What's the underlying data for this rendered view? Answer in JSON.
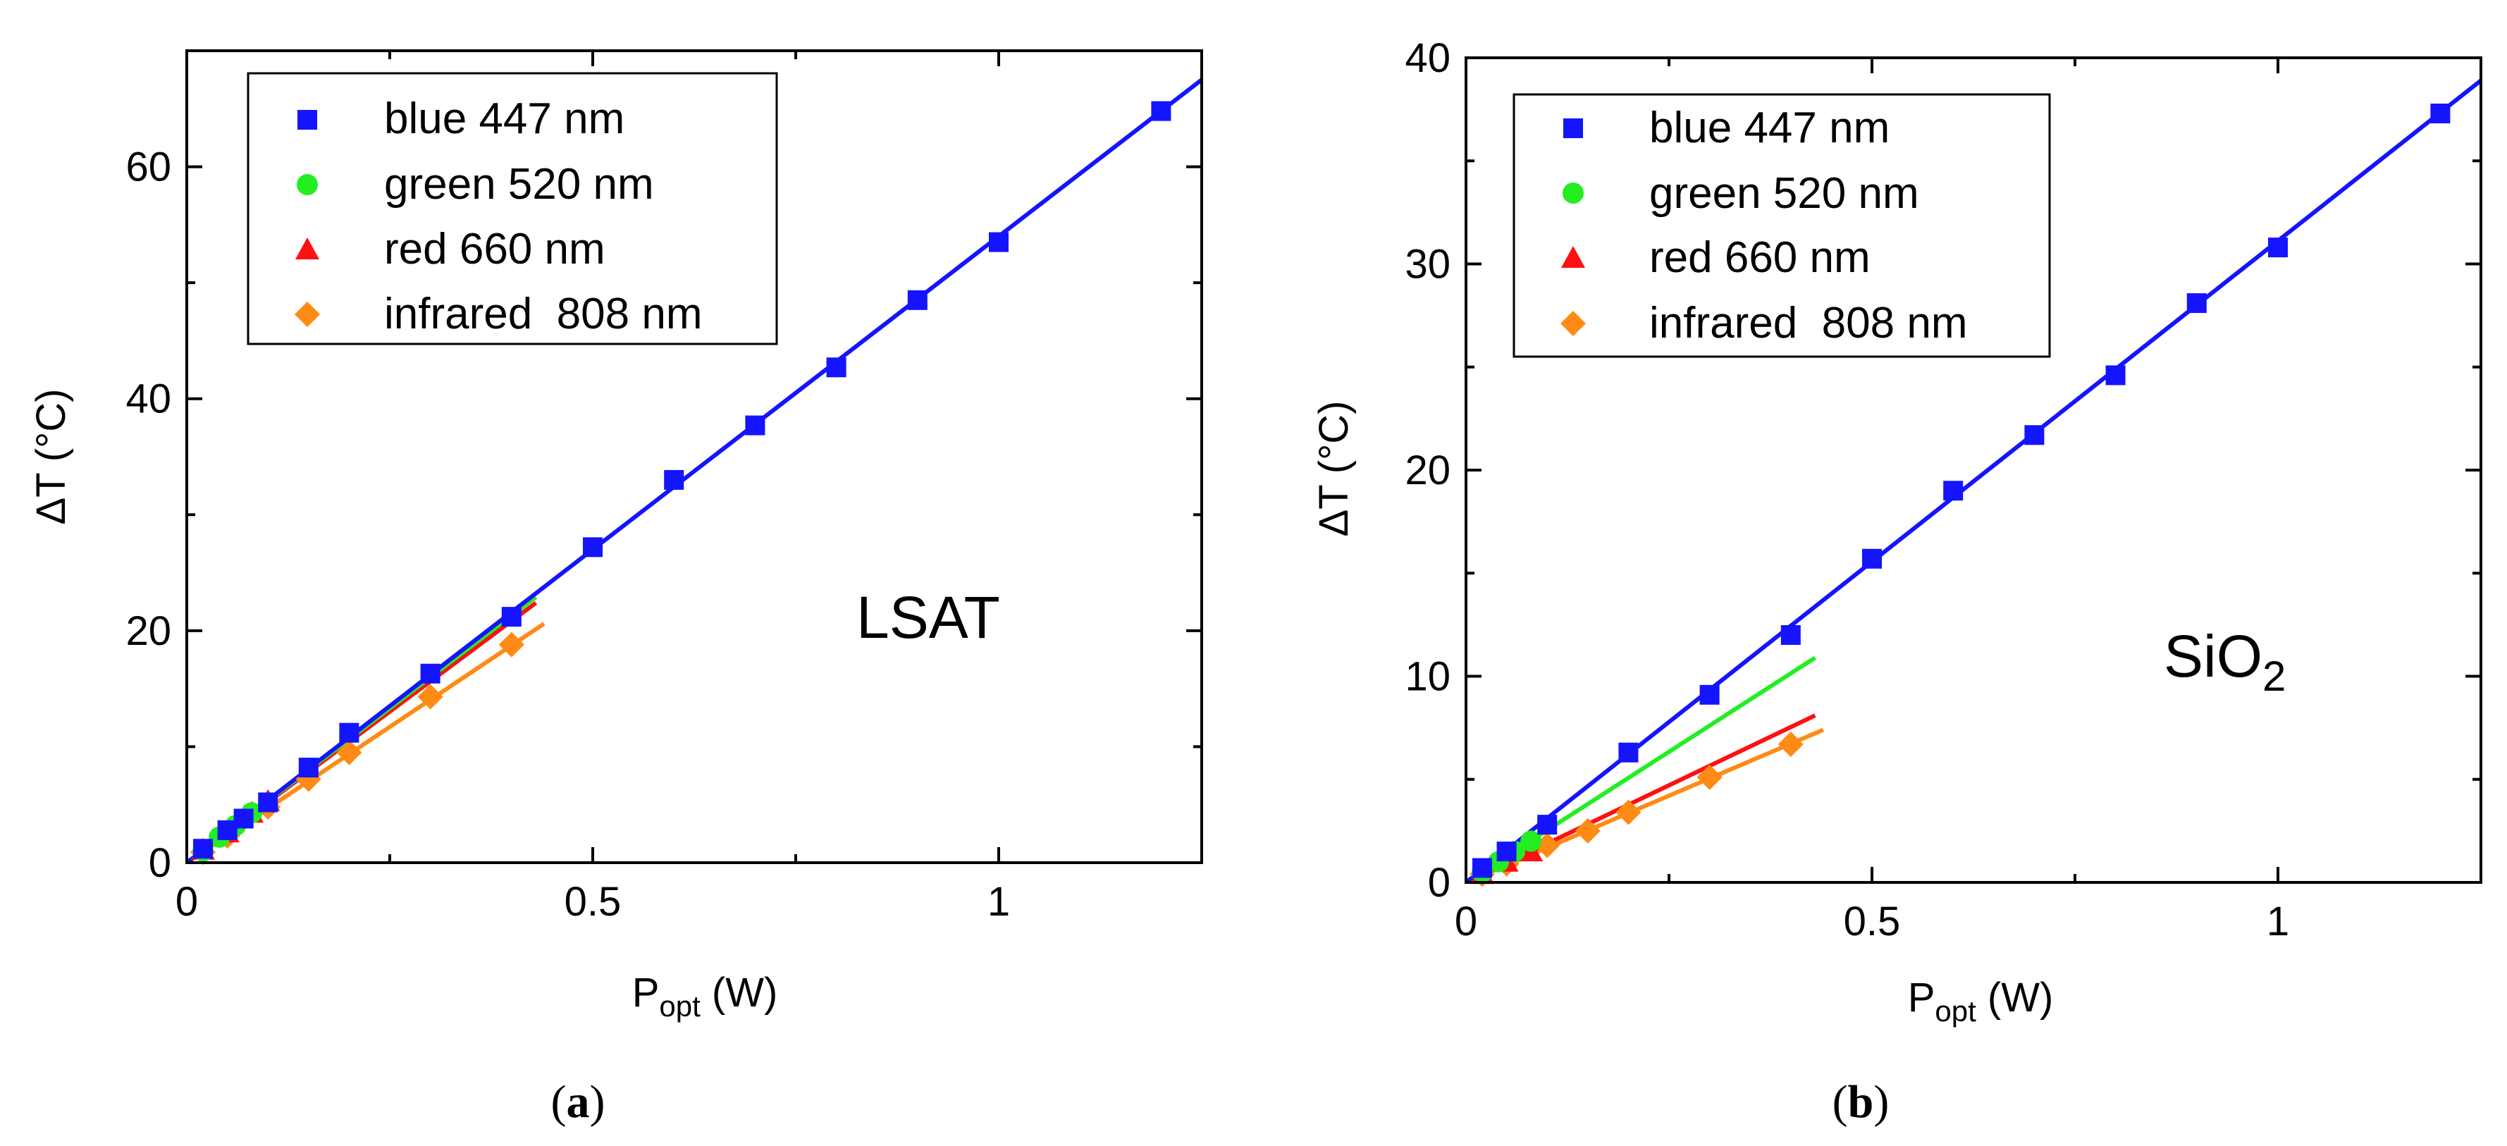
{
  "colors": {
    "blue": "#1414ff",
    "green": "#22ee22",
    "red": "#ff1010",
    "orange": "#ff8a14",
    "axis": "#000000"
  },
  "chart_data": [
    {
      "type": "scatter",
      "panel_label": "a",
      "annotation": "LSAT",
      "xlabel": "P_opt (W)",
      "ylabel": "ΔT (°C)",
      "xlim": [
        0,
        1.25
      ],
      "ylim": [
        0,
        70
      ],
      "xticks": [
        0,
        0.5,
        1
      ],
      "xtick_labels": [
        "0",
        "0.5",
        "1"
      ],
      "yticks": [
        0,
        20,
        40,
        60
      ],
      "ytick_labels": [
        "0",
        "20",
        "40",
        "60"
      ],
      "legend_position": "top-left",
      "series": [
        {
          "name": "blue 447 nm",
          "color_key": "blue",
          "marker": "square",
          "x": [
            0.02,
            0.05,
            0.07,
            0.1,
            0.15,
            0.2,
            0.3,
            0.4,
            0.5,
            0.6,
            0.7,
            0.8,
            0.9,
            1.0,
            1.2
          ],
          "y": [
            1.2,
            2.8,
            3.8,
            5.2,
            8.2,
            11.2,
            16.3,
            21.2,
            27.2,
            33.0,
            37.7,
            42.7,
            48.5,
            53.5,
            64.8
          ],
          "fit": {
            "x": [
              0,
              1.25
            ],
            "y": [
              0,
              67.5
            ]
          }
        },
        {
          "name": "green 520 nm",
          "color_key": "green",
          "marker": "circle",
          "x": [
            0.02,
            0.04,
            0.06,
            0.08
          ],
          "y": [
            1.0,
            2.2,
            3.2,
            4.3
          ],
          "fit": {
            "x": [
              0,
              0.43
            ],
            "y": [
              0,
              22.9
            ]
          }
        },
        {
          "name": "red 660 nm",
          "color_key": "red",
          "marker": "triangle",
          "x": [
            0.02,
            0.05,
            0.08,
            0.1
          ],
          "y": [
            1.1,
            2.6,
            4.3,
            5.3
          ],
          "fit": {
            "x": [
              0,
              0.43
            ],
            "y": [
              0,
              22.4
            ]
          }
        },
        {
          "name": "infrared  808 nm",
          "color_key": "orange",
          "marker": "diamond",
          "x": [
            0.02,
            0.05,
            0.1,
            0.15,
            0.2,
            0.3,
            0.4
          ],
          "y": [
            0.9,
            2.3,
            4.8,
            7.2,
            9.5,
            14.3,
            18.8
          ],
          "fit": {
            "x": [
              0,
              0.44
            ],
            "y": [
              0,
              20.6
            ]
          }
        }
      ]
    },
    {
      "type": "scatter",
      "panel_label": "b",
      "annotation": "SiO2",
      "annotation_main": "SiO",
      "annotation_sub": "2",
      "xlabel": "P_opt (W)",
      "ylabel": "ΔT (°C)",
      "xlim": [
        0,
        1.25
      ],
      "ylim": [
        0,
        40
      ],
      "xticks": [
        0,
        0.5,
        1
      ],
      "xtick_labels": [
        "0",
        "0.5",
        "1"
      ],
      "yticks": [
        0,
        10,
        20,
        30,
        40
      ],
      "ytick_labels": [
        "0",
        "10",
        "20",
        "30",
        "40"
      ],
      "legend_position": "top-left",
      "series": [
        {
          "name": "blue 447 nm",
          "color_key": "blue",
          "marker": "square",
          "x": [
            0.02,
            0.05,
            0.1,
            0.2,
            0.3,
            0.4,
            0.5,
            0.6,
            0.7,
            0.8,
            0.9,
            1.0,
            1.2
          ],
          "y": [
            0.7,
            1.5,
            2.8,
            6.3,
            9.1,
            12.0,
            15.7,
            19.0,
            21.7,
            24.6,
            28.1,
            30.8,
            37.3
          ],
          "fit": {
            "x": [
              0,
              1.25
            ],
            "y": [
              0,
              38.9
            ]
          }
        },
        {
          "name": "green 520 nm",
          "color_key": "green",
          "marker": "circle",
          "x": [
            0.02,
            0.04,
            0.06,
            0.08
          ],
          "y": [
            0.5,
            1.0,
            1.5,
            2.0
          ],
          "fit": {
            "x": [
              0,
              0.43
            ],
            "y": [
              0,
              10.9
            ]
          }
        },
        {
          "name": "red 660 nm",
          "color_key": "red",
          "marker": "triangle",
          "x": [
            0.02,
            0.05,
            0.08
          ],
          "y": [
            0.4,
            1.0,
            1.5
          ],
          "fit": {
            "x": [
              0,
              0.43
            ],
            "y": [
              0,
              8.1
            ]
          }
        },
        {
          "name": "infrared  808 nm",
          "color_key": "orange",
          "marker": "diamond",
          "x": [
            0.02,
            0.05,
            0.1,
            0.15,
            0.2,
            0.3,
            0.4
          ],
          "y": [
            0.4,
            0.9,
            1.8,
            2.5,
            3.4,
            5.1,
            6.7
          ],
          "fit": {
            "x": [
              0,
              0.44
            ],
            "y": [
              0,
              7.4
            ]
          }
        }
      ]
    }
  ]
}
